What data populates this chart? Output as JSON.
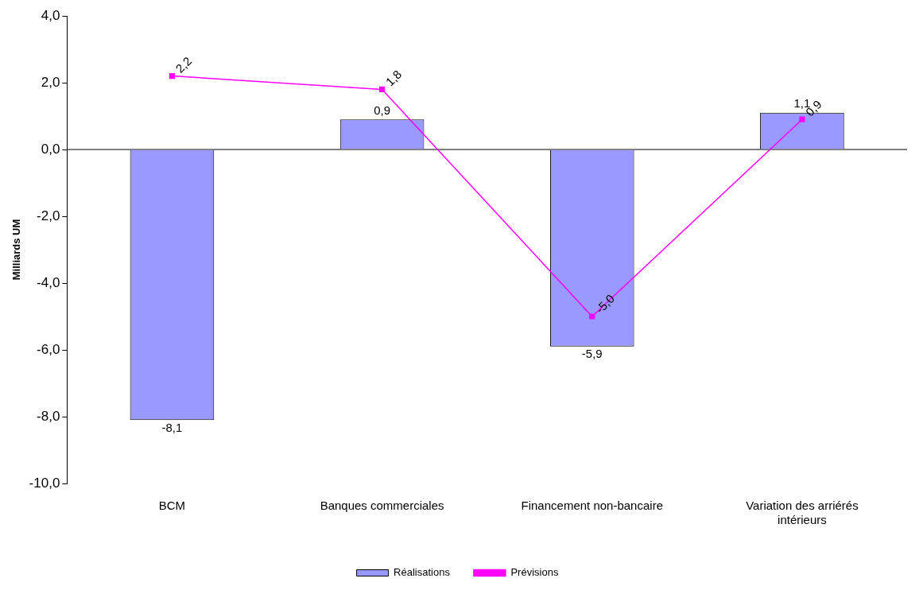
{
  "chart_data": {
    "type": "bar",
    "ylabel": "Milliards UM",
    "categories": [
      "BCM",
      "Banques commerciales",
      "Financement non-bancaire",
      "Variation des arriérés intérieurs"
    ],
    "series": [
      {
        "name": "Réalisations",
        "color": "#9999ff",
        "values": [
          -8.1,
          0.9,
          -5.9,
          1.1
        ],
        "value_labels": [
          "-8,1",
          "0,9",
          "-5,9",
          "1,1"
        ]
      },
      {
        "name": "Prévisions",
        "type": "line",
        "color": "#ff00ff",
        "marker": "square",
        "values": [
          2.2,
          1.8,
          -5.0,
          0.9
        ],
        "value_labels": [
          "2,2",
          "1,8",
          "-5,0",
          "0,9"
        ]
      }
    ],
    "ylim": [
      -10,
      4
    ],
    "yticks": [
      {
        "value": -10,
        "label": "-10,0"
      },
      {
        "value": -8,
        "label": "-8,0"
      },
      {
        "value": -6,
        "label": "-6,0"
      },
      {
        "value": -4,
        "label": "-4,0"
      },
      {
        "value": -2,
        "label": "-2,0"
      },
      {
        "value": 0,
        "label": "0,0"
      },
      {
        "value": 2,
        "label": "2,0"
      },
      {
        "value": 4,
        "label": "4,0"
      }
    ],
    "ref_lines": [
      {
        "axis": "y",
        "value": 0,
        "color": "#000000"
      }
    ],
    "grid": false,
    "legend": "bottom"
  }
}
